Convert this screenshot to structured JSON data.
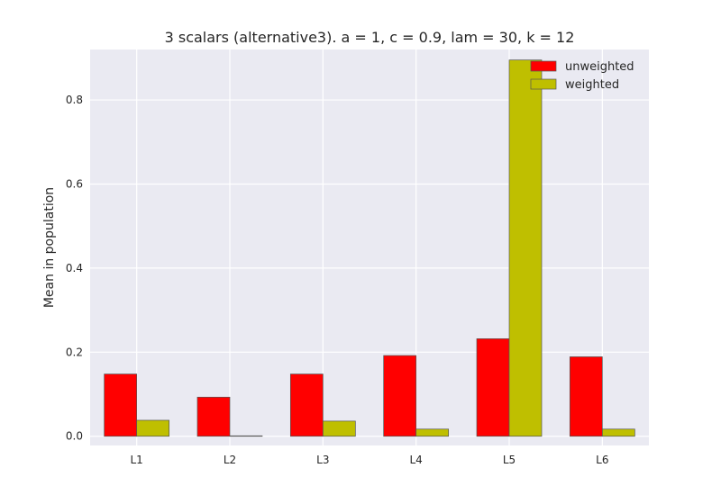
{
  "chart_data": {
    "type": "bar",
    "title": "3 scalars (alternative3). a = 1, c = 0.9, lam = 30, k = 12",
    "xlabel": "",
    "ylabel": "Mean in population",
    "categories": [
      "L1",
      "L2",
      "L3",
      "L4",
      "L5",
      "L6"
    ],
    "series": [
      {
        "name": "unweighted",
        "color": "#ff0000",
        "values": [
          0.148,
          0.093,
          0.148,
          0.192,
          0.232,
          0.189
        ]
      },
      {
        "name": "weighted",
        "color": "#bfbf00",
        "values": [
          0.038,
          0.001,
          0.036,
          0.017,
          0.895,
          0.017
        ]
      }
    ],
    "ylim": [
      -0.022,
      0.92
    ],
    "yticks": [
      0.0,
      0.2,
      0.4,
      0.6,
      0.8
    ],
    "ytick_labels": [
      "0.0",
      "0.2",
      "0.4",
      "0.6",
      "0.8"
    ],
    "grid": true,
    "legend_position": "top-right",
    "background_color": "#eaeaf2",
    "grid_color": "#ffffff"
  }
}
